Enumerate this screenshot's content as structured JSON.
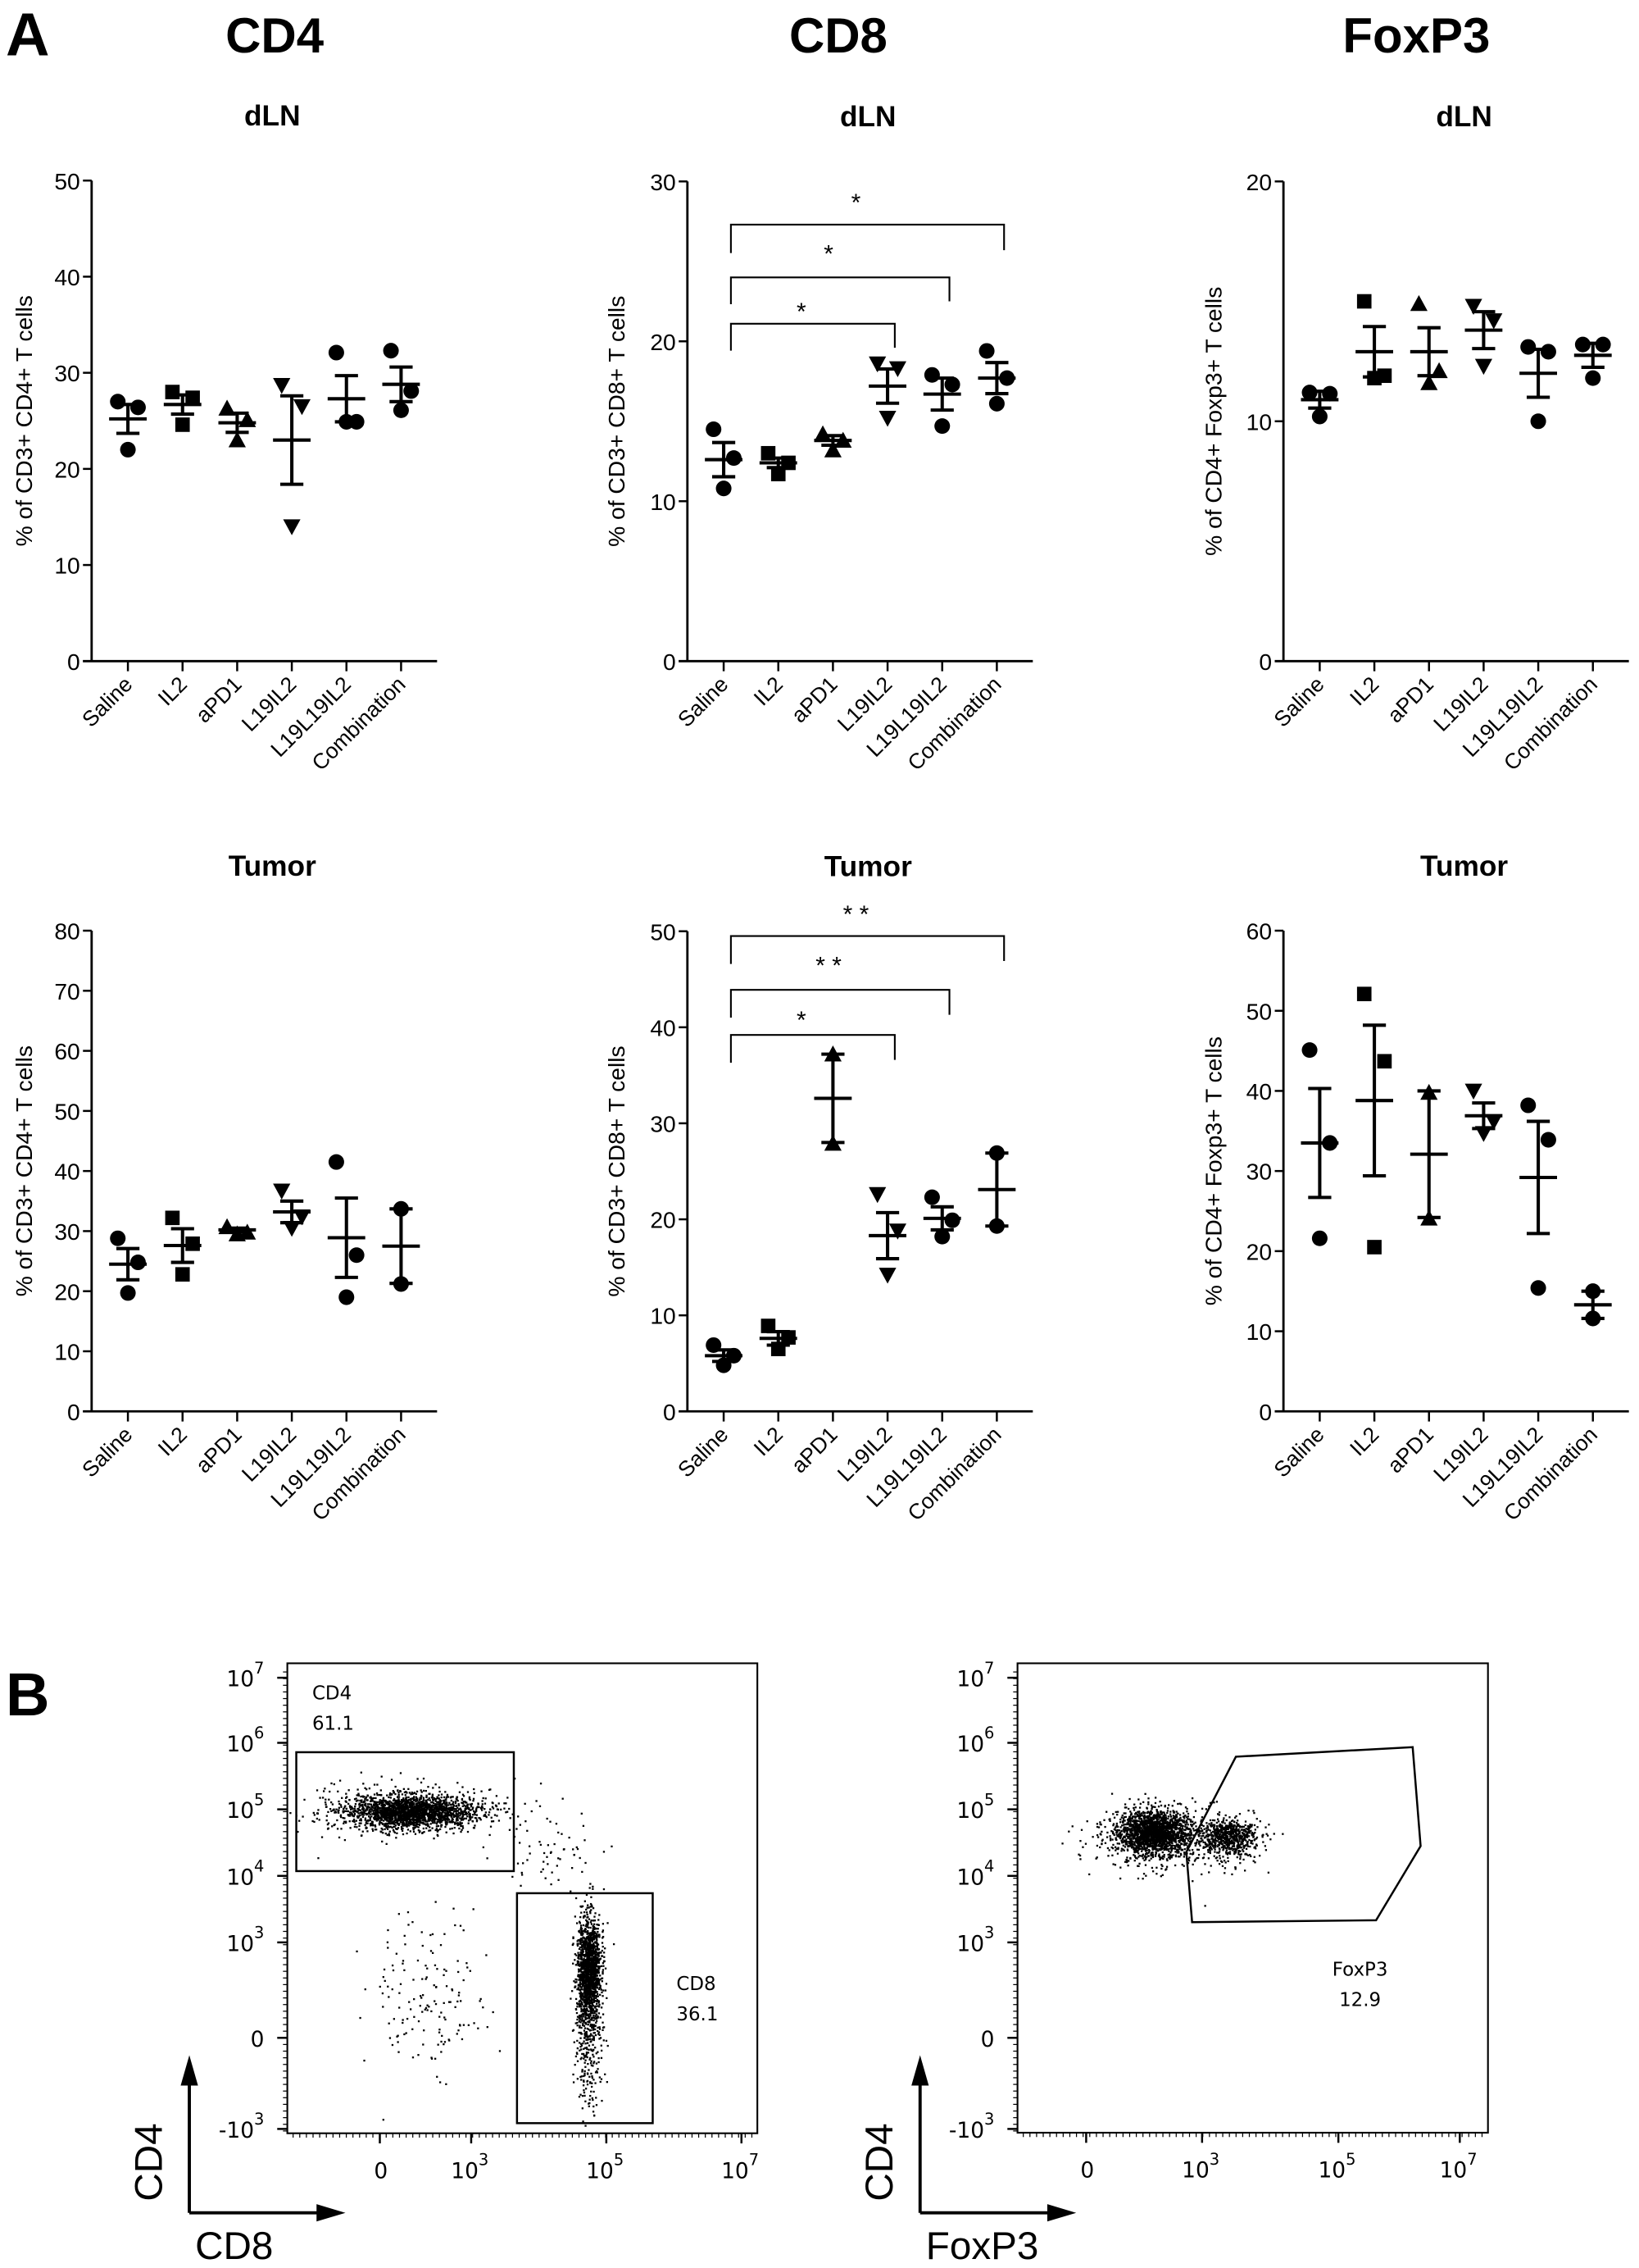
{
  "panel_labels": {
    "a": "A",
    "b": "B"
  },
  "column_headers": [
    "CD4",
    "CD8",
    "FoxP3"
  ],
  "colors": {
    "ink": "#000000",
    "background": "#ffffff"
  },
  "chart_data": [
    {
      "type": "scatter",
      "subtype": "dot plot with mean ± SEM",
      "title": "dLN",
      "ylabel": "% of CD3+ CD4+ T cells",
      "xlabel": "",
      "ylim": [
        0,
        50
      ],
      "yticks": [
        0,
        10,
        20,
        30,
        40,
        50
      ],
      "grid": false,
      "categories": [
        "Saline",
        "IL2",
        "aPD1",
        "L19IL2",
        "L19L19IL2",
        "Combination"
      ],
      "groups": [
        {
          "name": "Saline",
          "marker": "circle",
          "values": [
            27.0,
            26.4,
            22.0
          ],
          "mean": 25.2,
          "sem": 1.5
        },
        {
          "name": "IL2",
          "marker": "square",
          "values": [
            28.0,
            27.4,
            24.6
          ],
          "mean": 26.7,
          "sem": 1.0
        },
        {
          "name": "aPD1",
          "marker": "triangle-up",
          "values": [
            26.3,
            25.1,
            23.0
          ],
          "mean": 24.8,
          "sem": 1.0
        },
        {
          "name": "L19IL2",
          "marker": "triangle-down",
          "values": [
            28.7,
            26.5,
            14.0
          ],
          "mean": 23.0,
          "sem": 4.6
        },
        {
          "name": "L19L19IL2",
          "marker": "circle",
          "values": [
            32.1,
            24.9,
            24.9
          ],
          "mean": 27.3,
          "sem": 2.4
        },
        {
          "name": "Combination",
          "marker": "circle",
          "values": [
            32.3,
            28.1,
            26.1
          ],
          "mean": 28.8,
          "sem": 1.8
        }
      ],
      "significance": []
    },
    {
      "type": "scatter",
      "subtype": "dot plot with mean ± SEM",
      "title": "dLN",
      "ylabel": "% of CD3+ CD8+ T cells",
      "xlabel": "",
      "ylim": [
        0,
        30
      ],
      "yticks": [
        0,
        10,
        20,
        30
      ],
      "grid": false,
      "categories": [
        "Saline",
        "IL2",
        "aPD1",
        "L19IL2",
        "L19L19IL2",
        "Combination"
      ],
      "groups": [
        {
          "name": "Saline",
          "marker": "circle",
          "values": [
            14.5,
            12.7,
            10.8
          ],
          "mean": 12.6,
          "sem": 1.07
        },
        {
          "name": "IL2",
          "marker": "square",
          "values": [
            13.0,
            12.4,
            11.7
          ],
          "mean": 12.4,
          "sem": 0.3
        },
        {
          "name": "aPD1",
          "marker": "triangle-up",
          "values": [
            14.2,
            13.8,
            13.2
          ],
          "mean": 13.8,
          "sem": 0.3
        },
        {
          "name": "L19IL2",
          "marker": "triangle-down",
          "values": [
            18.6,
            18.3,
            15.2
          ],
          "mean": 17.2,
          "sem": 1.07
        },
        {
          "name": "L19L19IL2",
          "marker": "circle",
          "values": [
            17.9,
            17.3,
            14.7
          ],
          "mean": 16.7,
          "sem": 1.0
        },
        {
          "name": "Combination",
          "marker": "circle",
          "values": [
            19.4,
            17.7,
            16.1
          ],
          "mean": 17.7,
          "sem": 0.97
        }
      ],
      "significance": [
        {
          "from": "Saline",
          "to": "Combination",
          "label": "*"
        },
        {
          "from": "Saline",
          "to": "L19L19IL2",
          "label": "*"
        },
        {
          "from": "Saline",
          "to": "L19IL2",
          "label": "*"
        }
      ]
    },
    {
      "type": "scatter",
      "subtype": "dot plot with mean ± SEM",
      "title": "dLN",
      "ylabel": "% of CD4+ Foxp3+ T cells",
      "xlabel": "",
      "ylim": [
        0,
        20
      ],
      "yticks": [
        0,
        10,
        20
      ],
      "grid": false,
      "categories": [
        "Saline",
        "IL2",
        "aPD1",
        "L19IL2",
        "L19L19IL2",
        "Combination"
      ],
      "groups": [
        {
          "name": "Saline",
          "marker": "circle",
          "values": [
            11.2,
            11.15,
            10.2
          ],
          "mean": 10.9,
          "sem": 0.35
        },
        {
          "name": "IL2",
          "marker": "square",
          "values": [
            15.0,
            11.9,
            11.8
          ],
          "mean": 12.9,
          "sem": 1.05
        },
        {
          "name": "aPD1",
          "marker": "triangle-up",
          "values": [
            14.9,
            12.1,
            11.6
          ],
          "mean": 12.9,
          "sem": 1.0
        },
        {
          "name": "L19IL2",
          "marker": "triangle-down",
          "values": [
            14.8,
            14.2,
            12.3
          ],
          "mean": 13.8,
          "sem": 0.77
        },
        {
          "name": "L19L19IL2",
          "marker": "circle",
          "values": [
            13.1,
            12.9,
            10.0
          ],
          "mean": 12.0,
          "sem": 1.0
        },
        {
          "name": "Combination",
          "marker": "circle",
          "values": [
            13.2,
            13.2,
            11.8
          ],
          "mean": 12.75,
          "sem": 0.5
        }
      ],
      "significance": []
    },
    {
      "type": "scatter",
      "subtype": "dot plot with mean ± SEM",
      "title": "Tumor",
      "ylabel": "% of CD3+ CD4+ T cells",
      "xlabel": "",
      "ylim": [
        0,
        80
      ],
      "yticks": [
        0,
        10,
        20,
        30,
        40,
        50,
        60,
        70,
        80
      ],
      "grid": false,
      "categories": [
        "Saline",
        "IL2",
        "aPD1",
        "L19IL2",
        "L19L19IL2",
        "Combination"
      ],
      "groups": [
        {
          "name": "Saline",
          "marker": "circle",
          "values": [
            28.8,
            24.8,
            19.7
          ],
          "mean": 24.5,
          "sem": 2.6
        },
        {
          "name": "IL2",
          "marker": "square",
          "values": [
            32.2,
            27.9,
            22.8
          ],
          "mean": 27.6,
          "sem": 2.8
        },
        {
          "name": "aPD1",
          "marker": "triangle-up",
          "values": [
            30.7,
            29.8,
            29.5
          ],
          "mean": 30.2,
          "sem": 0.3
        },
        {
          "name": "L19IL2",
          "marker": "triangle-down",
          "values": [
            36.7,
            32.4,
            30.5
          ],
          "mean": 33.2,
          "sem": 1.8
        },
        {
          "name": "L19L19IL2",
          "marker": "circle",
          "values": [
            41.5,
            26.0,
            19.0
          ],
          "mean": 28.9,
          "sem": 6.6
        },
        {
          "name": "Combination",
          "marker": "circle",
          "values": [
            33.7,
            21.2
          ],
          "mean": 27.5,
          "sem": 6.2
        }
      ],
      "significance": []
    },
    {
      "type": "scatter",
      "subtype": "dot plot with mean ± SEM",
      "title": "Tumor",
      "ylabel": "% of  CD3+ CD8+ T cells",
      "xlabel": "",
      "ylim": [
        0,
        50
      ],
      "yticks": [
        0,
        10,
        20,
        30,
        40,
        50
      ],
      "grid": false,
      "categories": [
        "Saline",
        "IL2",
        "aPD1",
        "L19IL2",
        "L19L19IL2",
        "Combination"
      ],
      "groups": [
        {
          "name": "Saline",
          "marker": "circle",
          "values": [
            6.9,
            5.8,
            4.8
          ],
          "mean": 5.8,
          "sem": 0.6
        },
        {
          "name": "IL2",
          "marker": "square",
          "values": [
            8.9,
            7.7,
            6.5
          ],
          "mean": 7.6,
          "sem": 0.7
        },
        {
          "name": "aPD1",
          "marker": "triangle-up",
          "values": [
            37.2,
            27.9
          ],
          "mean": 32.6,
          "sem": 4.6
        },
        {
          "name": "L19IL2",
          "marker": "triangle-down",
          "values": [
            22.6,
            18.8,
            14.2
          ],
          "mean": 18.3,
          "sem": 2.4
        },
        {
          "name": "L19L19IL2",
          "marker": "circle",
          "values": [
            22.3,
            19.9,
            18.2
          ],
          "mean": 20.1,
          "sem": 1.2
        },
        {
          "name": "Combination",
          "marker": "circle",
          "values": [
            26.9,
            19.3
          ],
          "mean": 23.1,
          "sem": 3.8
        }
      ],
      "significance": [
        {
          "from": "Saline",
          "to": "Combination",
          "label": "* *"
        },
        {
          "from": "Saline",
          "to": "L19L19IL2",
          "label": "* *"
        },
        {
          "from": "Saline",
          "to": "L19IL2",
          "label": "*"
        }
      ]
    },
    {
      "type": "scatter",
      "subtype": "dot plot with mean ± SEM",
      "title": "Tumor",
      "ylabel": "% of CD4+ Foxp3+ T cells",
      "xlabel": "",
      "ylim": [
        0,
        60
      ],
      "yticks": [
        0,
        10,
        20,
        30,
        40,
        50,
        60
      ],
      "grid": false,
      "categories": [
        "Saline",
        "IL2",
        "aPD1",
        "L19IL2",
        "L19L19IL2",
        "Combination"
      ],
      "groups": [
        {
          "name": "Saline",
          "marker": "circle",
          "values": [
            45.1,
            33.5,
            21.6
          ],
          "mean": 33.5,
          "sem": 6.8
        },
        {
          "name": "IL2",
          "marker": "square",
          "values": [
            52.1,
            43.7,
            20.5
          ],
          "mean": 38.8,
          "sem": 9.4
        },
        {
          "name": "aPD1",
          "marker": "triangle-up",
          "values": [
            39.8,
            24.1
          ],
          "mean": 32.1,
          "sem": 7.9
        },
        {
          "name": "L19IL2",
          "marker": "triangle-down",
          "values": [
            40.0,
            36.2,
            34.7
          ],
          "mean": 36.9,
          "sem": 1.6
        },
        {
          "name": "L19L19IL2",
          "marker": "circle",
          "values": [
            38.2,
            33.9,
            15.4
          ],
          "mean": 29.2,
          "sem": 7.0
        },
        {
          "name": "Combination",
          "marker": "circle",
          "values": [
            15.0,
            11.6
          ],
          "mean": 13.3,
          "sem": 1.7
        }
      ],
      "significance": []
    },
    {
      "type": "scatter",
      "subtype": "flow cytometry dot plot",
      "xlabel": "CD8",
      "ylabel": "CD4",
      "scale": "biexponential",
      "xticks": [
        {
          "base": "0",
          "exp": ""
        },
        {
          "base": "10",
          "exp": "3"
        },
        {
          "base": "10",
          "exp": "5"
        },
        {
          "base": "10",
          "exp": "7"
        }
      ],
      "yticks": [
        {
          "base": "10",
          "exp": "7"
        },
        {
          "base": "10",
          "exp": "6"
        },
        {
          "base": "10",
          "exp": "5"
        },
        {
          "base": "10",
          "exp": "4"
        },
        {
          "base": "10",
          "exp": "3"
        },
        {
          "base": "0",
          "exp": ""
        },
        {
          "base": "-10",
          "exp": "3"
        }
      ],
      "gates": [
        {
          "name": "CD4",
          "percent": "61.1",
          "shape": "rectangle"
        },
        {
          "name": "CD8",
          "percent": "36.1",
          "shape": "rectangle"
        }
      ]
    },
    {
      "type": "scatter",
      "subtype": "flow cytometry dot plot",
      "xlabel": "FoxP3",
      "ylabel": "CD4",
      "scale": "biexponential",
      "xticks": [
        {
          "base": "0",
          "exp": ""
        },
        {
          "base": "10",
          "exp": "3"
        },
        {
          "base": "10",
          "exp": "5"
        },
        {
          "base": "10",
          "exp": "7"
        }
      ],
      "yticks": [
        {
          "base": "10",
          "exp": "7"
        },
        {
          "base": "10",
          "exp": "6"
        },
        {
          "base": "10",
          "exp": "5"
        },
        {
          "base": "10",
          "exp": "4"
        },
        {
          "base": "10",
          "exp": "3"
        },
        {
          "base": "0",
          "exp": ""
        },
        {
          "base": "-10",
          "exp": "3"
        }
      ],
      "gates": [
        {
          "name": "FoxP3",
          "percent": "12.9",
          "shape": "polygon"
        }
      ]
    }
  ]
}
